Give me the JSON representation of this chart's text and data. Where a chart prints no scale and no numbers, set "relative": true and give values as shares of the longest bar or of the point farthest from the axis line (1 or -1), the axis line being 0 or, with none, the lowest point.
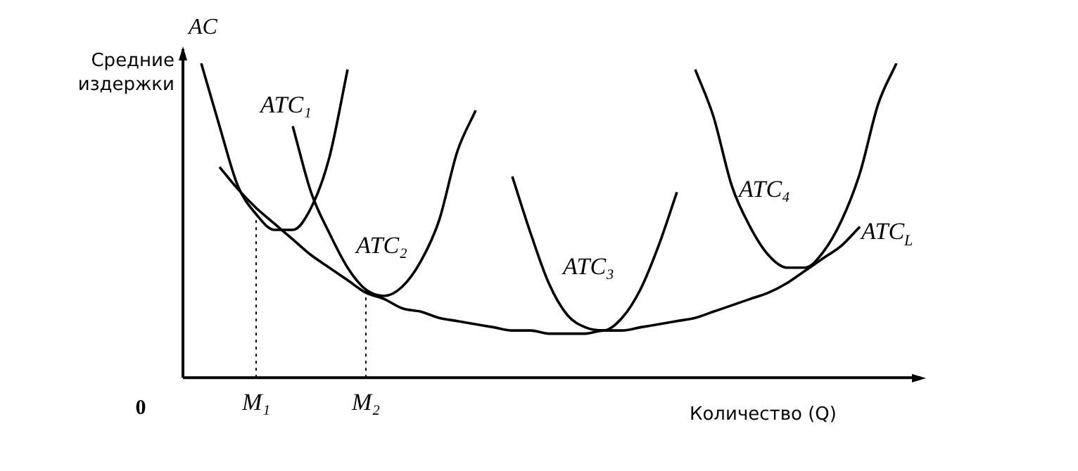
{
  "chart_data": {
    "type": "line",
    "relative": true,
    "xlabel": "Количество (Q)",
    "ylabel": "AC Средние издержки",
    "annotations": [
      "0"
    ],
    "categories": [
      null,
      null,
      null,
      null,
      "M₁",
      null,
      null,
      null,
      null,
      null,
      "M₂",
      null,
      null,
      null,
      null,
      null,
      null,
      null,
      null,
      null,
      null,
      null,
      null,
      null,
      null,
      null,
      null,
      null,
      null,
      null,
      null,
      null,
      null,
      null,
      null,
      null,
      null,
      null,
      null,
      null,
      null
    ],
    "grid": false,
    "legend": false,
    "marker": "none",
    "line_style": "solid",
    "ref_lines": [
      {
        "axis": "x",
        "value": "M₁",
        "line_style": "dotted",
        "color": "#000000"
      },
      {
        "axis": "x",
        "value": "M₂",
        "line_style": "dotted",
        "color": "#000000"
      }
    ],
    "series": [
      {
        "name": "ATC₁",
        "color": "#000000",
        "values": [
          null,
          1,
          0.8,
          0.61,
          0.52,
          0.47,
          0.47,
          0.54,
          0.7,
          0.98,
          null,
          null,
          null,
          null,
          null,
          null,
          null,
          null,
          null,
          null,
          null,
          null,
          null,
          null,
          null,
          null,
          null,
          null,
          null,
          null,
          null,
          null,
          null,
          null,
          null,
          null,
          null,
          null,
          null,
          null,
          null
        ]
      },
      {
        "name": "ATC₂",
        "color": "#000000",
        "values": [
          null,
          null,
          null,
          null,
          null,
          null,
          0.8,
          0.59,
          0.46,
          0.35,
          0.28,
          0.26,
          0.29,
          0.37,
          0.5,
          0.72,
          0.85,
          null,
          null,
          null,
          null,
          null,
          null,
          null,
          null,
          null,
          null,
          null,
          null,
          null,
          null,
          null,
          null,
          null,
          null,
          null,
          null,
          null,
          null,
          null,
          null
        ]
      },
      {
        "name": "ATC₃",
        "color": "#000000",
        "values": [
          null,
          null,
          null,
          null,
          null,
          null,
          null,
          null,
          null,
          null,
          null,
          null,
          null,
          null,
          null,
          null,
          null,
          null,
          0.64,
          0.46,
          0.3,
          0.2,
          0.16,
          0.15,
          0.19,
          0.28,
          0.42,
          0.59,
          null,
          null,
          null,
          null,
          null,
          null,
          null,
          null,
          null,
          null,
          null,
          null,
          null
        ]
      },
      {
        "name": "ATC₄",
        "color": "#000000",
        "values": [
          null,
          null,
          null,
          null,
          null,
          null,
          null,
          null,
          null,
          null,
          null,
          null,
          null,
          null,
          null,
          null,
          null,
          null,
          null,
          null,
          null,
          null,
          null,
          null,
          null,
          null,
          null,
          null,
          0.98,
          0.83,
          0.61,
          0.48,
          0.39,
          0.35,
          0.35,
          0.4,
          0.5,
          0.65,
          0.87,
          1,
          null
        ]
      },
      {
        "name": "ATC$_{L}$",
        "color": "#000000",
        "values": [
          null,
          null,
          0.67,
          0.6,
          0.54,
          0.49,
          0.44,
          0.39,
          0.35,
          0.31,
          0.27,
          0.25,
          0.22,
          0.21,
          0.19,
          0.18,
          0.17,
          0.16,
          0.15,
          0.15,
          0.14,
          0.14,
          0.14,
          0.15,
          0.15,
          0.16,
          0.17,
          0.18,
          0.19,
          0.21,
          0.23,
          0.25,
          0.27,
          0.3,
          0.34,
          0.38,
          0.42,
          0.48,
          null,
          null,
          null
        ]
      }
    ]
  }
}
